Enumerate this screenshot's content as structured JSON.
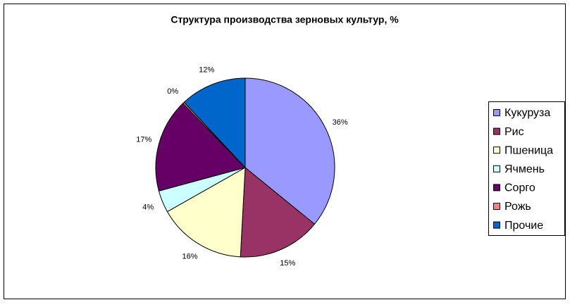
{
  "chart_data": {
    "type": "pie",
    "title": "Структура производства зерновых культур, %",
    "categories": [
      "Кукуруза",
      "Рис",
      "Пшеница",
      "Ячмень",
      "Сорго",
      "Рожь",
      "Прочие"
    ],
    "values": [
      36,
      15,
      16,
      4,
      17,
      0.3,
      12
    ],
    "value_labels": [
      "36%",
      "15%",
      "16%",
      "4%",
      "17%",
      "0%",
      "12%"
    ],
    "colors": [
      "#9999ff",
      "#993366",
      "#ffffcc",
      "#ccffff",
      "#660066",
      "#ff8080",
      "#0066cc"
    ],
    "legend": "right"
  }
}
